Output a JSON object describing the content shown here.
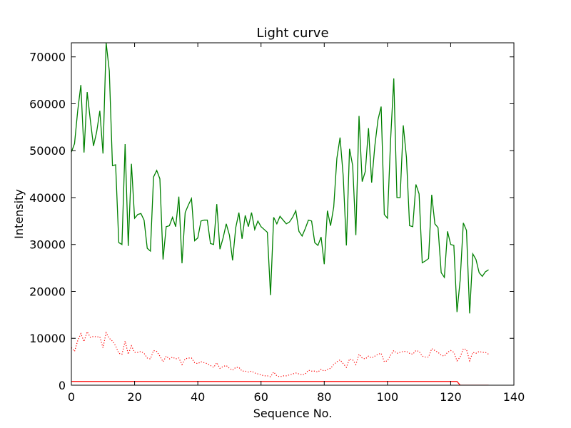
{
  "chart_data": {
    "type": "line",
    "title": "Light curve",
    "xlabel": "Sequence No.",
    "ylabel": "Intensity",
    "xlim": [
      0,
      140
    ],
    "ylim": [
      0,
      73000
    ],
    "x_ticks": [
      0,
      20,
      40,
      60,
      80,
      100,
      120,
      140
    ],
    "y_ticks": [
      0,
      10000,
      20000,
      30000,
      40000,
      50000,
      60000,
      70000
    ],
    "grid": false,
    "legend": "none",
    "series": [
      {
        "color": "#008000",
        "style": "solid",
        "x_start": 0,
        "values": [
          49700,
          51500,
          58500,
          64000,
          49600,
          62500,
          56500,
          51000,
          54000,
          58500,
          49400,
          73000,
          67000,
          46800,
          47000,
          30400,
          30000,
          51400,
          29700,
          47200,
          35600,
          36400,
          36600,
          35200,
          29200,
          28600,
          44400,
          45800,
          44000,
          26800,
          33800,
          34000,
          35800,
          33800,
          40200,
          26000,
          36800,
          38400,
          39800,
          30800,
          31400,
          35000,
          35200,
          35200,
          30200,
          30000,
          38600,
          29000,
          31400,
          34400,
          32000,
          26600,
          33600,
          36800,
          31200,
          36200,
          33800,
          36800,
          33200,
          35000,
          33800,
          33200,
          32600,
          19200,
          35800,
          34400,
          36000,
          35200,
          34400,
          34800,
          35800,
          37200,
          32800,
          31800,
          33400,
          35200,
          35000,
          30400,
          29800,
          31600,
          25800,
          37200,
          34000,
          38000,
          48400,
          52800,
          44600,
          29800,
          50400,
          46800,
          32000,
          57400,
          43400,
          45600,
          54800,
          43200,
          51000,
          56600,
          59400,
          36400,
          35600,
          52400,
          65400,
          40000,
          40000,
          55400,
          48600,
          34000,
          33800,
          42800,
          40800,
          26100,
          26500,
          27000,
          40600,
          34400,
          33600,
          24000,
          23000,
          32800,
          30000,
          29800,
          15600,
          22400,
          34600,
          33000,
          15300,
          28000,
          26800,
          24000,
          23200,
          24200,
          24600
        ]
      },
      {
        "color": "#ff0000",
        "style": "dotted",
        "x_start": 0,
        "values": [
          8000,
          7200,
          9500,
          11000,
          9300,
          11400,
          10200,
          10400,
          10300,
          10300,
          8000,
          11200,
          10000,
          9400,
          8400,
          6800,
          6600,
          9400,
          6600,
          8400,
          7000,
          7000,
          7200,
          6800,
          5800,
          5600,
          7400,
          7200,
          6200,
          5000,
          6200,
          5600,
          6000,
          5600,
          5800,
          4400,
          5600,
          5800,
          5800,
          4800,
          4600,
          5000,
          4800,
          4600,
          4200,
          3800,
          4800,
          3600,
          4000,
          4200,
          3600,
          3200,
          3800,
          3800,
          3000,
          3000,
          2800,
          3000,
          2600,
          2400,
          2200,
          2000,
          2000,
          1800,
          2800,
          2000,
          1800,
          2000,
          2000,
          2200,
          2400,
          2600,
          2400,
          2200,
          2400,
          3200,
          3000,
          3000,
          2800,
          3400,
          3000,
          3400,
          3600,
          4400,
          5000,
          5400,
          4600,
          3800,
          5600,
          5400,
          4400,
          6600,
          5800,
          5600,
          6200,
          5800,
          6200,
          6600,
          6800,
          5000,
          5200,
          6400,
          7400,
          6800,
          7000,
          7200,
          7200,
          6800,
          6600,
          7400,
          7200,
          6200,
          6000,
          6000,
          7800,
          7400,
          7000,
          6400,
          6200,
          7000,
          7400,
          7000,
          5200,
          6000,
          7800,
          7600,
          5200,
          7000,
          6800,
          7200,
          7000,
          7000,
          6600
        ]
      },
      {
        "color": "#ff0000",
        "style": "solid",
        "points": [
          [
            0,
            800
          ],
          [
            122,
            800
          ],
          [
            123,
            0
          ],
          [
            132,
            0
          ]
        ]
      }
    ]
  }
}
